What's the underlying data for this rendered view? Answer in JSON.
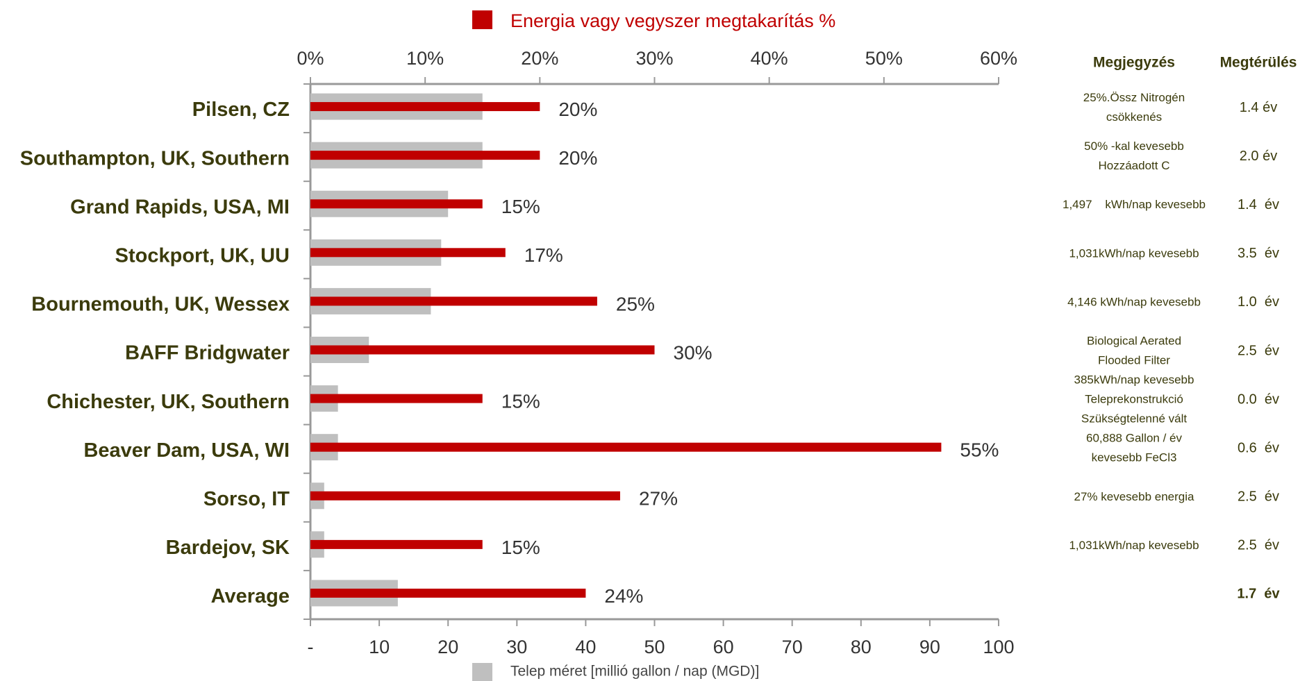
{
  "chart_data": {
    "type": "bar",
    "orientation": "horizontal",
    "categories": [
      "Pilsen, CZ",
      "Southampton, UK, Southern",
      "Grand Rapids, USA, MI",
      "Stockport, UK, UU",
      "Bournemouth, UK, Wessex",
      "BAFF Bridgwater",
      "Chichester, UK, Southern",
      "Beaver Dam, USA, WI",
      "Sorso, IT",
      "Bardejov, SK",
      "Average"
    ],
    "series": [
      {
        "name": "Telep méret [millió gallon / nap (MGD)]",
        "color": "#bfbfbf",
        "axis": "x2",
        "values": [
          25,
          25,
          20,
          19,
          17.5,
          8.5,
          4,
          4,
          2,
          2,
          12.7
        ]
      },
      {
        "name": "Energia vagy vegyszer megtakarítás %",
        "color": "#c00000",
        "axis": "x",
        "values": [
          20,
          20,
          15,
          17,
          25,
          30,
          15,
          55,
          27,
          15,
          24
        ],
        "value_labels": [
          "20%",
          "20%",
          "15%",
          "17%",
          "25%",
          "30%",
          "15%",
          "55%",
          "27%",
          "15%",
          "24%"
        ]
      }
    ],
    "xlim": [
      0,
      60
    ],
    "xticks": [
      {
        "value": 0,
        "label": "0%"
      },
      {
        "value": 10,
        "label": "10%"
      },
      {
        "value": 20,
        "label": "20%"
      },
      {
        "value": 30,
        "label": "30%"
      },
      {
        "value": 40,
        "label": "40%"
      },
      {
        "value": 50,
        "label": "50%"
      },
      {
        "value": 60,
        "label": "60%"
      }
    ],
    "x2lim": [
      0,
      100
    ],
    "x2ticks": [
      {
        "value": 0,
        "label": "-"
      },
      10,
      20,
      30,
      40,
      50,
      60,
      70,
      80,
      90,
      100
    ]
  },
  "table": {
    "headers": [
      "Megjegyzés",
      "Megtérülés"
    ],
    "rows": [
      {
        "note": [
          "25%.Össz Nitrogén",
          "csökkenés"
        ],
        "payback": "1.4 év"
      },
      {
        "note": [
          "50% -kal kevesebb",
          "Hozzáadott C"
        ],
        "payback": "2.0 év"
      },
      {
        "note": [
          "1,497    kWh/nap kevesebb"
        ],
        "payback": "1.4  év"
      },
      {
        "note": [
          "1,031kWh/nap kevesebb"
        ],
        "payback": "3.5  év"
      },
      {
        "note": [
          "4,146 kWh/nap kevesebb"
        ],
        "payback": "1.0  év"
      },
      {
        "note": [
          "Biological Aerated",
          "Flooded Filter"
        ],
        "payback": "2.5  év"
      },
      {
        "note": [
          "385kWh/nap kevesebb",
          "Teleprekonstrukció",
          "Szükségtelenné vált"
        ],
        "payback": "0.0  év"
      },
      {
        "note": [
          "60,888 Gallon / év",
          "kevesebb FeCl3"
        ],
        "payback": "0.6  év"
      },
      {
        "note": [
          "27% kevesebb energia"
        ],
        "payback": "2.5  év"
      },
      {
        "note": [
          "1,031kWh/nap kevesebb"
        ],
        "payback": "2.5  év"
      },
      {
        "payback": "1.7  év"
      }
    ]
  }
}
